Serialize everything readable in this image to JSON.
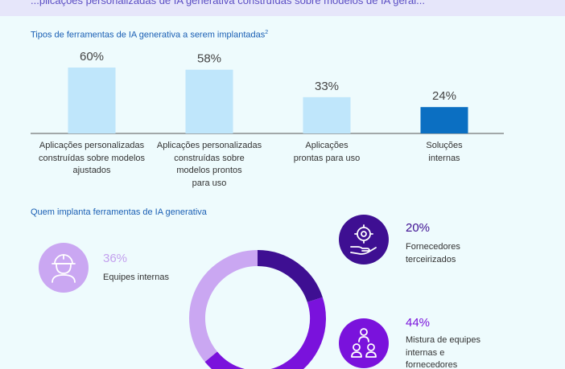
{
  "header": {
    "cutoff_text": "...plicações personalizadas de IA generativa construídas sobre modelos de IA geral..."
  },
  "bar_section": {
    "title": "Tipos de ferramentas de IA generativa a serem implantadas",
    "title_sup": "2"
  },
  "donut_section": {
    "title": "Quem implanta ferramentas de IA generativa"
  },
  "colors": {
    "bar_light": "#bfe6fb",
    "bar_highlight": "#0b6fc2",
    "donut_light": "#caa7f2",
    "donut_mid": "#7a12dc",
    "donut_dark": "#3e0f92",
    "title_blue": "#1a5fb4",
    "panel_bg": "#eefbfd"
  },
  "chart_data": [
    {
      "type": "bar",
      "title": "Tipos de ferramentas de IA generativa a serem implantadas",
      "categories": [
        "Aplicações personalizadas\nconstruídas sobre modelos\najustados",
        "Aplicações personalizadas\nconstruídas sobre\nmodelos prontos\npara uso",
        "Aplicações\nprontas para uso",
        "Soluções\ninternas"
      ],
      "values": [
        60,
        58,
        33,
        24
      ],
      "value_labels": [
        "60%",
        "58%",
        "33%",
        "24%"
      ],
      "ylim": [
        0,
        60
      ],
      "highlight_index": 3
    },
    {
      "type": "pie",
      "title": "Quem implanta ferramentas de IA generativa",
      "style": "donut",
      "slices": [
        {
          "label": "Equipes internas",
          "value": 36,
          "value_label": "36%",
          "color": "#caa7f2",
          "icon": "worker-helmet-icon"
        },
        {
          "label": "Fornecedores\nterceirizados",
          "value": 20,
          "value_label": "20%",
          "color": "#3e0f92",
          "icon": "gear-hand-icon"
        },
        {
          "label": "Mistura de equipes\ninternas e\nfornecedores",
          "value": 44,
          "value_label": "44%",
          "color": "#7a12dc",
          "icon": "people-group-icon"
        }
      ]
    }
  ]
}
